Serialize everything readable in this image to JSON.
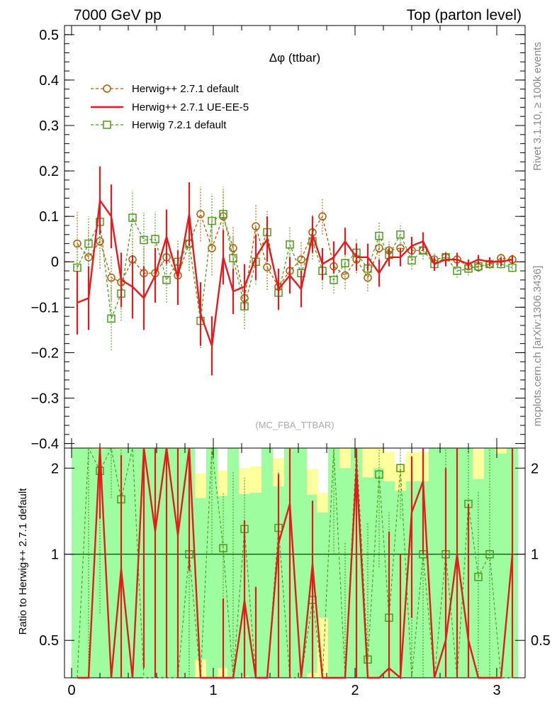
{
  "header": {
    "left": "7000 GeV pp",
    "right": "Top (parton level)"
  },
  "side_labels": {
    "rivet": "Rivet 3.1.10, ≥ 100k events",
    "mcplots": "mcplots.cern.ch [arXiv:1306.3436]"
  },
  "chart_data": {
    "type": "line",
    "title": "Δφ (ttbar)",
    "analysis_label": "(MC_FBA_TTBAR)",
    "ratio_ylabel": "Ratio to Herwig++ 2.7.1 default",
    "main_ylim": [
      -0.41,
      0.52
    ],
    "main_yticks": [
      "−0.4",
      "−0.3",
      "−0.2",
      "−0.1",
      "0",
      "0.1",
      "0.2",
      "0.3",
      "0.4",
      "0.5"
    ],
    "ratio_ylim": [
      0.37,
      2.35
    ],
    "ratio_yticks": [
      "0.5",
      "1",
      "2"
    ],
    "xlim": [
      -0.05,
      3.2
    ],
    "xticks": [
      "0",
      "1",
      "2",
      "3"
    ],
    "grid": false,
    "legend_position": "top-left",
    "series": [
      {
        "name": "Herwig++ 2.7.1 default",
        "style": "dashed-circle",
        "color": "#b05a00",
        "x": [
          0.04,
          0.12,
          0.2,
          0.28,
          0.35,
          0.43,
          0.51,
          0.59,
          0.67,
          0.75,
          0.83,
          0.91,
          0.99,
          1.07,
          1.14,
          1.22,
          1.3,
          1.38,
          1.46,
          1.54,
          1.62,
          1.7,
          1.77,
          1.85,
          1.93,
          2.01,
          2.09,
          2.17,
          2.24,
          2.32,
          2.4,
          2.48,
          2.56,
          2.64,
          2.72,
          2.8,
          2.87,
          2.95,
          3.03,
          3.11
        ],
        "values": [
          0.04,
          0.01,
          0.045,
          -0.035,
          -0.045,
          0.005,
          -0.025,
          -0.025,
          0.01,
          -0.03,
          0.04,
          0.105,
          0.03,
          0.1,
          0.03,
          -0.08,
          0.078,
          -0.012,
          -0.055,
          -0.02,
          0.005,
          0.065,
          0.1,
          -0.01,
          -0.03,
          0.005,
          -0.035,
          0.03,
          0.025,
          0.03,
          0.025,
          0.025,
          0.005,
          0.01,
          0.005,
          -0.01,
          -0.012,
          -0.005,
          0.008,
          0.005
        ],
        "errors": [
          0.07,
          0.06,
          0.06,
          0.05,
          0.06,
          0.05,
          0.06,
          0.06,
          0.05,
          0.05,
          0.06,
          0.06,
          0.06,
          0.06,
          0.05,
          0.05,
          0.05,
          0.05,
          0.04,
          0.04,
          0.04,
          0.04,
          0.04,
          0.03,
          0.03,
          0.03,
          0.03,
          0.03,
          0.02,
          0.02,
          0.02,
          0.02,
          0.015,
          0.015,
          0.015,
          0.015,
          0.01,
          0.01,
          0.01,
          0.01
        ]
      },
      {
        "name": "Herwig++ 2.7.1 UE-EE-5",
        "style": "solid",
        "color": "#e41a1c",
        "x": [
          0.04,
          0.12,
          0.2,
          0.28,
          0.35,
          0.43,
          0.51,
          0.59,
          0.67,
          0.75,
          0.83,
          0.91,
          0.99,
          1.07,
          1.14,
          1.22,
          1.3,
          1.38,
          1.46,
          1.54,
          1.62,
          1.7,
          1.77,
          1.85,
          1.93,
          2.01,
          2.09,
          2.17,
          2.24,
          2.32,
          2.4,
          2.48,
          2.56,
          2.64,
          2.72,
          2.8,
          2.87,
          2.95,
          3.03,
          3.11
        ],
        "values": [
          -0.09,
          -0.08,
          0.135,
          0.1,
          -0.04,
          -0.055,
          -0.08,
          -0.03,
          0.055,
          -0.035,
          0.105,
          -0.115,
          -0.185,
          0.01,
          -0.065,
          -0.055,
          0.01,
          0.05,
          -0.06,
          -0.03,
          -0.06,
          0.06,
          -0.005,
          0.01,
          0.045,
          0.01,
          0.01,
          -0.025,
          0.01,
          0.01,
          0.035,
          0.045,
          -0.005,
          0.005,
          0.005,
          -0.005,
          0.005,
          0.0,
          0.0,
          0.005
        ],
        "errors": [
          0.07,
          0.07,
          0.075,
          0.07,
          0.06,
          0.07,
          0.07,
          0.06,
          0.06,
          0.06,
          0.07,
          0.07,
          0.065,
          0.06,
          0.05,
          0.05,
          0.05,
          0.05,
          0.045,
          0.04,
          0.04,
          0.04,
          0.035,
          0.035,
          0.03,
          0.03,
          0.03,
          0.03,
          0.02,
          0.02,
          0.02,
          0.02,
          0.015,
          0.015,
          0.015,
          0.01,
          0.01,
          0.01,
          0.01,
          0.01
        ]
      },
      {
        "name": "Herwig 7.2.1 default",
        "style": "dashed-square",
        "color": "#4d9a1f",
        "x": [
          0.04,
          0.12,
          0.2,
          0.28,
          0.35,
          0.43,
          0.51,
          0.59,
          0.67,
          0.75,
          0.83,
          0.91,
          0.99,
          1.07,
          1.14,
          1.22,
          1.3,
          1.38,
          1.46,
          1.54,
          1.62,
          1.7,
          1.77,
          1.85,
          1.93,
          2.01,
          2.09,
          2.17,
          2.24,
          2.32,
          2.4,
          2.48,
          2.56,
          2.64,
          2.72,
          2.8,
          2.87,
          2.95,
          3.03,
          3.11
        ],
        "values": [
          -0.013,
          0.04,
          0.088,
          -0.125,
          -0.07,
          0.097,
          0.048,
          0.05,
          -0.04,
          0.0,
          0.04,
          -0.13,
          0.09,
          0.105,
          0.008,
          -0.098,
          0.0,
          0.065,
          -0.068,
          0.038,
          -0.025,
          0.045,
          -0.02,
          -0.04,
          -0.003,
          0.02,
          -0.015,
          0.057,
          0.015,
          0.06,
          0.003,
          0.025,
          -0.005,
          0.01,
          -0.02,
          -0.015,
          -0.01,
          -0.005,
          -0.005,
          -0.013
        ],
        "errors": [
          0.06,
          0.06,
          0.06,
          0.07,
          0.06,
          0.06,
          0.06,
          0.06,
          0.05,
          0.05,
          0.06,
          0.06,
          0.06,
          0.06,
          0.05,
          0.05,
          0.05,
          0.05,
          0.04,
          0.04,
          0.04,
          0.04,
          0.04,
          0.03,
          0.03,
          0.03,
          0.03,
          0.03,
          0.02,
          0.02,
          0.02,
          0.02,
          0.015,
          0.015,
          0.015,
          0.015,
          0.01,
          0.01,
          0.01,
          0.01
        ]
      }
    ]
  }
}
